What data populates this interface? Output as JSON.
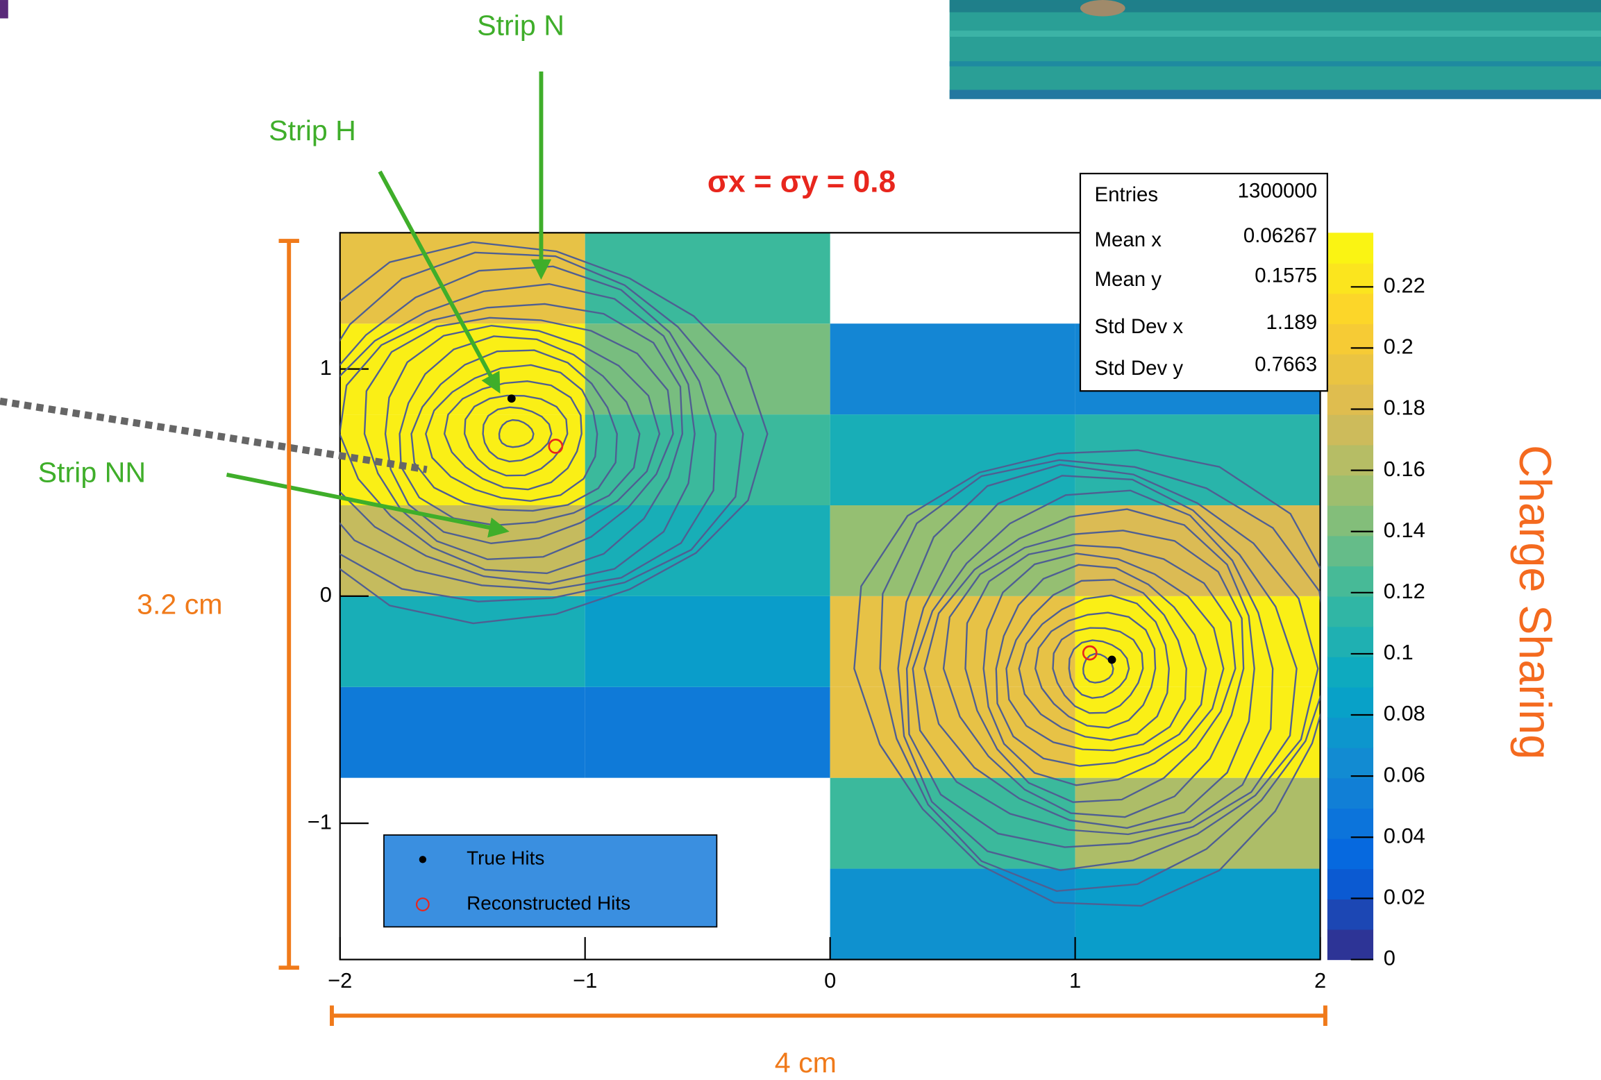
{
  "chart_data": {
    "type": "heatmap",
    "title": "σx = σy = 0.8",
    "xlim": [
      -2,
      2
    ],
    "ylim": [
      -1.6,
      1.6
    ],
    "xticks": [
      {
        "value": -2,
        "label": "−2"
      },
      {
        "value": -1,
        "label": "−1"
      },
      0,
      1,
      2
    ],
    "yticks": [
      {
        "value": -1,
        "label": "−1"
      },
      0,
      1
    ],
    "x_edges": [
      -2,
      -1,
      0,
      1,
      2
    ],
    "y_edges": [
      -1.6,
      -1.2,
      -0.8,
      -0.4,
      0,
      0.4,
      0.8,
      1.2,
      1.6
    ],
    "z": [
      [
        null,
        null,
        0.07,
        0.08
      ],
      [
        null,
        null,
        0.12,
        0.16
      ],
      [
        0.05,
        0.05,
        0.19,
        0.23
      ],
      [
        0.1,
        0.08,
        0.19,
        0.23
      ],
      [
        0.17,
        0.1,
        0.15,
        0.18
      ],
      [
        0.23,
        0.12,
        0.1,
        0.11
      ],
      [
        0.23,
        0.14,
        0.06,
        0.06
      ],
      [
        0.19,
        0.12,
        null,
        null
      ]
    ],
    "zlim": [
      0,
      0.2377
    ],
    "zticks": [
      0,
      0.02,
      0.04,
      0.06,
      0.08,
      0.1,
      0.12,
      0.14,
      0.16,
      0.18,
      0.2,
      0.22
    ],
    "z_label": "Charge Sharing",
    "colorscale": [
      "#352a87",
      "#0363e1",
      "#1485d4",
      "#06a7c6",
      "#38b99e",
      "#92bf73",
      "#d9ba56",
      "#fcce2e",
      "#f9fb0e"
    ],
    "points": [
      {
        "name": "True Hits",
        "color": "#000000",
        "marker": "dot",
        "x": [
          -1.3,
          1.15
        ],
        "y": [
          0.87,
          -0.28
        ]
      },
      {
        "name": "Reconstructed Hits",
        "color": "#e8261d",
        "marker": "open-circle",
        "x": [
          -1.12,
          1.06
        ],
        "y": [
          0.66,
          -0.25
        ]
      }
    ],
    "stats": [
      {
        "label": "Entries",
        "value": 1300000
      },
      {
        "label": "Mean x",
        "value": 0.06267
      },
      {
        "label": "Mean y",
        "value": 0.1575
      },
      {
        "label": "Std Dev x",
        "value": 1.189
      },
      {
        "label": "Std Dev y",
        "value": 0.7663
      }
    ],
    "annotations": [
      "Strip N",
      "Strip H",
      "Strip NN",
      "3.2 cm",
      "4 cm"
    ]
  }
}
